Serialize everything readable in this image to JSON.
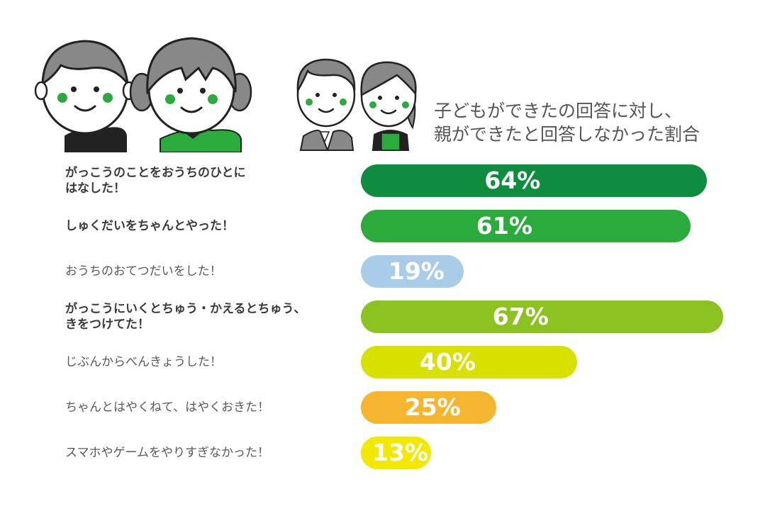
{
  "caption": {
    "line1": "子どもができたの回答に対し、",
    "line2": "親ができたと回答しなかった割合"
  },
  "illustration": {
    "icons": [
      "boy-icon",
      "girl-icon",
      "father-icon",
      "mother-icon"
    ]
  },
  "chart_data": {
    "type": "bar",
    "orientation": "horizontal",
    "title": "子どもができたの回答に対し、親ができたと回答しなかった割合",
    "xlim": [
      0,
      100
    ],
    "unit": "%",
    "categories": [
      "がっこうのことをおうちのひとにはなした！",
      "しゅくだいをちゃんとやった！",
      "おうちのおてつだいをした！",
      "がっこうにいくとちゅう・かえるとちゅう、きをつけてた！",
      "じぶんからべんきょうした！",
      "ちゃんとはやくねて、はやくおきた！",
      "スマホやゲームをやりすぎなかった！"
    ],
    "rows": [
      {
        "label_lines": [
          "がっこうのことをおうちのひとに",
          "はなした！"
        ],
        "value": 64,
        "value_label": "64%",
        "color": "#0e8d3e",
        "bold": true
      },
      {
        "label_lines": [
          "しゅくだいをちゃんとやった！"
        ],
        "value": 61,
        "value_label": "61%",
        "color": "#2aab3c",
        "bold": true
      },
      {
        "label_lines": [
          "おうちのおてつだいをした！"
        ],
        "value": 19,
        "value_label": "19%",
        "color": "#a9cde9",
        "bold": false
      },
      {
        "label_lines": [
          "がっこうにいくとちゅう・かえるとちゅう、",
          "きをつけてた！"
        ],
        "value": 67,
        "value_label": "67%",
        "color": "#8cc21f",
        "bold": true
      },
      {
        "label_lines": [
          "じぶんからべんきょうした！"
        ],
        "value": 40,
        "value_label": "40%",
        "color": "#d8e000",
        "bold": false
      },
      {
        "label_lines": [
          "ちゃんとはやくねて、はやくおきた！"
        ],
        "value": 25,
        "value_label": "25%",
        "color": "#f5b52e",
        "bold": false
      },
      {
        "label_lines": [
          "スマホやゲームをやりすぎなかった！"
        ],
        "value": 13,
        "value_label": "13%",
        "color": "#f2e800",
        "bold": false
      }
    ]
  }
}
